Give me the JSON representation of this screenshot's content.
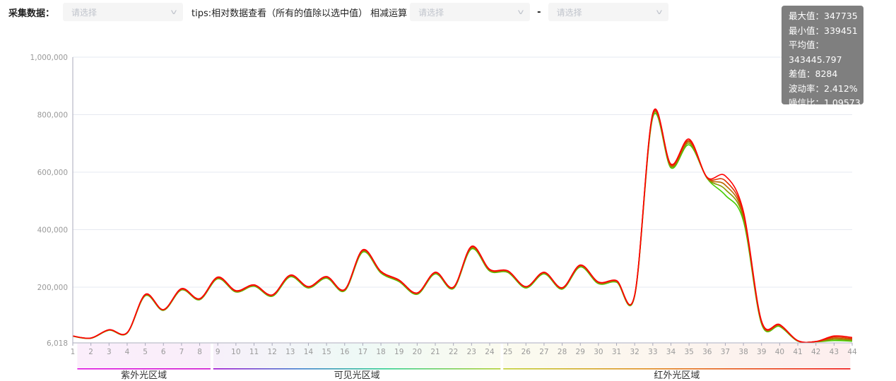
{
  "toolbar": {
    "collect_label": "采集数据：",
    "collect_placeholder": "请选择",
    "tips": "tips:相对数据查看（所有的值除以选中值）",
    "subtract_label": "相减运算",
    "subtract_a_placeholder": "请选择",
    "dash": "-",
    "subtract_b_placeholder": "请选择"
  },
  "tooltip": {
    "lines": [
      "最大值：347735",
      "最小值：339451",
      "平均值：343445.797",
      "差值：8284",
      "波动率：2.412%",
      "噪信比：1.09573"
    ]
  },
  "chart_data": {
    "type": "line",
    "x": [
      1,
      2,
      3,
      4,
      5,
      6,
      7,
      8,
      9,
      10,
      11,
      12,
      13,
      14,
      15,
      16,
      17,
      18,
      19,
      20,
      21,
      22,
      23,
      24,
      25,
      26,
      27,
      28,
      29,
      30,
      31,
      32,
      33,
      34,
      35,
      36,
      37,
      38,
      39,
      40,
      41,
      42,
      43,
      44
    ],
    "ylim": [
      6018,
      1000000
    ],
    "yticks": [
      "6,018",
      "200,000",
      "400,000",
      "600,000",
      "800,000",
      "1,000,000"
    ],
    "ytick_values": [
      6018,
      200000,
      400000,
      600000,
      800000,
      1000000
    ],
    "grid": true,
    "series_colors": [
      "#00dd00",
      "#44cc00",
      "#889900",
      "#bb6600",
      "#dd3300",
      "#ff0000"
    ],
    "series": [
      {
        "values": [
          29000,
          22000,
          50000,
          40000,
          170000,
          119000,
          190000,
          156000,
          229000,
          183000,
          203000,
          168000,
          236000,
          197000,
          231000,
          187000,
          322000,
          249000,
          219000,
          175000,
          246000,
          195000,
          333000,
          256000,
          251000,
          197000,
          246000,
          193000,
          270000,
          212000,
          217000,
          169000,
          790000,
          615000,
          695000,
          578000,
          520000,
          430000,
          72000,
          63000,
          12000,
          10000,
          14000,
          12000
        ]
      },
      {
        "values": [
          29500,
          22300,
          50500,
          40500,
          171000,
          120000,
          191000,
          157000,
          230500,
          184000,
          204500,
          169500,
          238000,
          198500,
          233000,
          188500,
          324500,
          251000,
          221000,
          176500,
          248000,
          196500,
          336000,
          258000,
          253000,
          199000,
          248000,
          194500,
          272500,
          214000,
          219000,
          170500,
          795000,
          619000,
          701000,
          579000,
          540000,
          440000,
          75000,
          65000,
          12500,
          10300,
          18000,
          15000
        ]
      },
      {
        "values": [
          29700,
          22600,
          51000,
          41000,
          172500,
          121000,
          192500,
          158000,
          232000,
          185500,
          206000,
          171000,
          239500,
          200000,
          234500,
          190000,
          327000,
          252500,
          222500,
          178000,
          250000,
          198000,
          338500,
          259500,
          255000,
          200500,
          250000,
          196000,
          274500,
          215500,
          220500,
          171500,
          799000,
          622000,
          706000,
          580000,
          555000,
          448000,
          77000,
          67000,
          13000,
          10600,
          22000,
          18000
        ]
      },
      {
        "values": [
          29800,
          22800,
          51500,
          41500,
          173500,
          121500,
          193500,
          159000,
          233500,
          186500,
          207000,
          172000,
          241000,
          201000,
          236000,
          191000,
          328500,
          254000,
          224000,
          179000,
          251000,
          199000,
          340500,
          261000,
          256000,
          201500,
          251000,
          197000,
          276000,
          217000,
          222000,
          172500,
          802000,
          625000,
          710000,
          581000,
          570000,
          455000,
          79000,
          68500,
          13500,
          10800,
          26000,
          21000
        ]
      },
      {
        "values": [
          30000,
          23000,
          52000,
          42000,
          175000,
          122000,
          195000,
          160000,
          235000,
          188000,
          208000,
          173000,
          242000,
          202000,
          237000,
          192000,
          330000,
          255000,
          225000,
          180000,
          252000,
          200000,
          342000,
          262000,
          257000,
          202000,
          252000,
          198000,
          277000,
          218000,
          223000,
          173000,
          805000,
          628000,
          715000,
          582000,
          587000,
          463000,
          82000,
          70000,
          14000,
          11000,
          30000,
          25000
        ]
      }
    ],
    "bands": [
      {
        "label": "紫外光区域",
        "from": 1.25,
        "to": 8.6
      },
      {
        "label": "可见光区域",
        "from": 8.75,
        "to": 24.6
      },
      {
        "label": "红外光区域",
        "from": 24.75,
        "to": 43.9
      }
    ]
  }
}
